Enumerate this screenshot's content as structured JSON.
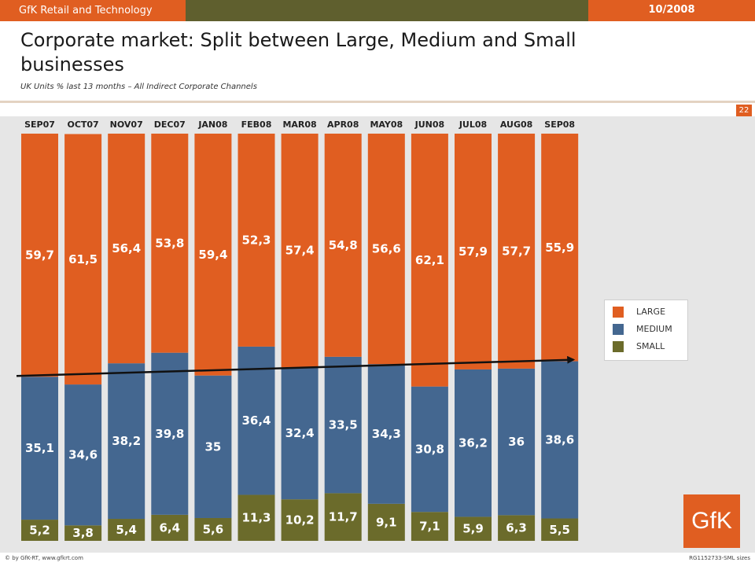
{
  "header": {
    "brand": "GfK Retail and Technology",
    "date": "10/2008"
  },
  "title": "Corporate market: Split between Large, Medium and Small businesses",
  "subtitle": "UK  Units % last 13 months – All Indirect Corporate Channels",
  "page_number": "22",
  "logo_text": "GfK",
  "footer": {
    "left": "© by GfK-RT, www.gfkrt.com",
    "right": "RG1152733-SML  sizes"
  },
  "legend": [
    {
      "name": "LARGE",
      "color": "#e05e21"
    },
    {
      "name": "MEDIUM",
      "color": "#446790"
    },
    {
      "name": "SMALL",
      "color": "#6b6b2b"
    }
  ],
  "chart_data": {
    "type": "bar",
    "stacked": true,
    "categories": [
      "SEP07",
      "OCT07",
      "NOV07",
      "DEC07",
      "JAN08",
      "FEB08",
      "MAR08",
      "APR08",
      "MAY08",
      "JUN08",
      "JUL08",
      "AUG08",
      "SEP08"
    ],
    "series": [
      {
        "name": "SMALL",
        "color": "#6b6b2b",
        "values": [
          5.2,
          3.8,
          5.4,
          6.4,
          5.6,
          11.3,
          10.2,
          11.7,
          9.1,
          7.1,
          5.9,
          6.3,
          5.5
        ],
        "labels": [
          "5,2",
          "3,8",
          "5,4",
          "6,4",
          "5,6",
          "11,3",
          "10,2",
          "11,7",
          "9,1",
          "7,1",
          "5,9",
          "6,3",
          "5,5"
        ]
      },
      {
        "name": "MEDIUM",
        "color": "#446790",
        "values": [
          35.1,
          34.6,
          38.2,
          39.8,
          35,
          36.4,
          32.4,
          33.5,
          34.3,
          30.8,
          36.2,
          36,
          38.6
        ],
        "labels": [
          "35,1",
          "34,6",
          "38,2",
          "39,8",
          "35",
          "36,4",
          "32,4",
          "33,5",
          "34,3",
          "30,8",
          "36,2",
          "36",
          "38,6"
        ]
      },
      {
        "name": "LARGE",
        "color": "#e05e21",
        "values": [
          59.7,
          61.5,
          56.4,
          53.8,
          59.4,
          52.3,
          57.4,
          54.8,
          56.6,
          62.1,
          57.9,
          57.7,
          55.9
        ],
        "labels": [
          "59,7",
          "61,5",
          "56,4",
          "53,8",
          "59,4",
          "52,3",
          "57,4",
          "54,8",
          "56,6",
          "62,1",
          "57,9",
          "57,7",
          "55,9"
        ]
      }
    ],
    "ylim": [
      0,
      100
    ],
    "unit": "%",
    "trend_arrow": {
      "from_month": "SEP07",
      "to_month": "SEP08",
      "from_value": 40.3,
      "to_value": 44.1
    }
  }
}
